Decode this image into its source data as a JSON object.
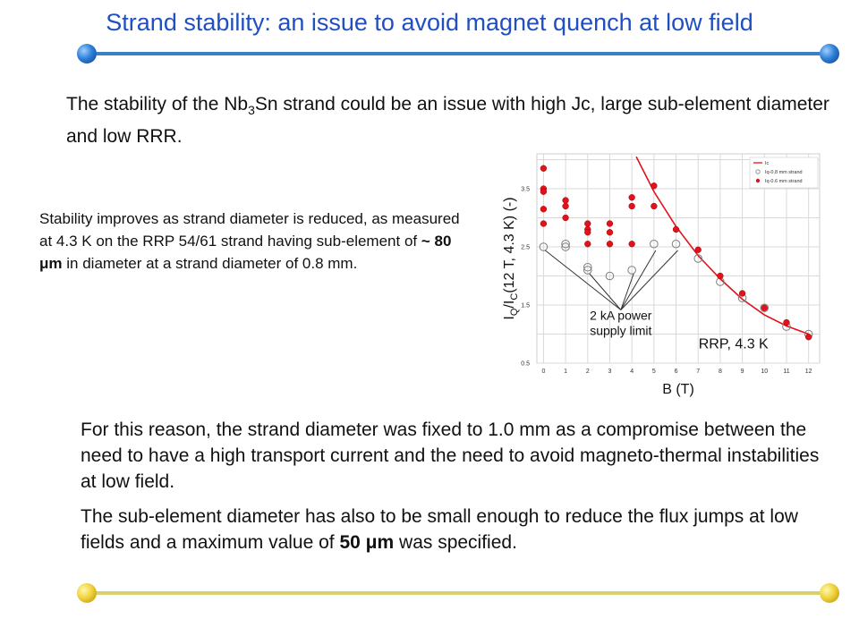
{
  "slide": {
    "title": "Strand stability: an issue to avoid magnet quench at low field",
    "intro": {
      "part1": "The stability of the Nb",
      "sub": "3",
      "part2": "Sn strand could be an issue with high Jc, large sub-element diameter and low RRR."
    },
    "side_note": {
      "text_before": "Stability improves as strand diameter is reduced, as measured at 4.3 K on the RRP 54/61 strand having sub-element of ",
      "bold": "~ 80 μm",
      "text_after": " in diameter at a strand diameter of 0.8 mm."
    },
    "paragraph1": "For this reason, the strand diameter was fixed to 1.0 mm as a compromise between the need to have a high transport current and the need to avoid magneto-thermal instabilities at low field.",
    "paragraph2": {
      "text_before": "The sub-element diameter has also to be small enough to reduce the flux jumps at low fields and a maximum value of ",
      "bold": "50 μm",
      "text_after": " was specified."
    },
    "colors": {
      "title": "#1f4fc2",
      "top_bar": "#3b7fc4",
      "bottom_bar": "#d9cf6b",
      "series_red": "#e0121b",
      "series_open": "#7f7f7f"
    }
  },
  "chart_data": {
    "type": "scatter",
    "xlabel": "B (T)",
    "ylabel_parts": {
      "I": "I",
      "sub1": "Q",
      "slash": "/I",
      "sub2": "C",
      "rest": "(12 T, 4.3 K) (-)"
    },
    "x_ticks": [
      "0",
      "1",
      "2",
      "3",
      "4",
      "5",
      "6",
      "7",
      "8",
      "9",
      "10",
      "11",
      "12"
    ],
    "y_ticks": [
      "0.5",
      "1.5",
      "2.5",
      "3.5"
    ],
    "xlim": [
      -0.3,
      12.5
    ],
    "ylim": [
      0.5,
      4.1
    ],
    "grid": true,
    "legend_position": "top-right",
    "legend": [
      "Ic",
      "Iq-0.8 mm strand",
      "Iq-0.6 mm strand"
    ],
    "series": [
      {
        "name": "Ic",
        "kind": "line",
        "x": [
          4.2,
          5,
          6,
          7,
          8,
          9,
          10,
          11,
          12
        ],
        "y": [
          4.05,
          3.45,
          2.85,
          2.35,
          1.95,
          1.6,
          1.33,
          1.14,
          1.0
        ]
      },
      {
        "name": "Iq-0.8 mm strand",
        "kind": "open",
        "x": [
          0,
          1,
          1,
          2,
          2,
          3,
          4,
          5,
          6,
          7,
          8,
          9,
          10,
          11,
          12
        ],
        "y": [
          2.5,
          2.55,
          2.5,
          2.15,
          2.1,
          2.0,
          2.1,
          2.55,
          2.55,
          2.3,
          1.9,
          1.62,
          1.45,
          1.13,
          1.0
        ]
      },
      {
        "name": "Iq-0.6 mm strand",
        "kind": "filled",
        "x": [
          0,
          0,
          0,
          0,
          0,
          1,
          1,
          1,
          2,
          2,
          2,
          2,
          3,
          3,
          3,
          4,
          4,
          4,
          5,
          5,
          6,
          7,
          8,
          9,
          10,
          11,
          12
        ],
        "y": [
          3.85,
          3.5,
          3.45,
          3.15,
          2.9,
          3.3,
          3.2,
          3.0,
          2.9,
          2.8,
          2.75,
          2.55,
          2.9,
          2.75,
          2.55,
          3.35,
          3.2,
          2.55,
          3.55,
          3.2,
          2.8,
          2.45,
          2.0,
          1.7,
          1.45,
          1.2,
          0.95
        ]
      }
    ],
    "annotations": [
      {
        "text_lines": [
          "2 kA power",
          "supply limit"
        ],
        "x": 3.5,
        "y": 1.2
      },
      {
        "text": "RRP, 4.3 K",
        "x": 8.6,
        "y": 1.0
      }
    ]
  }
}
